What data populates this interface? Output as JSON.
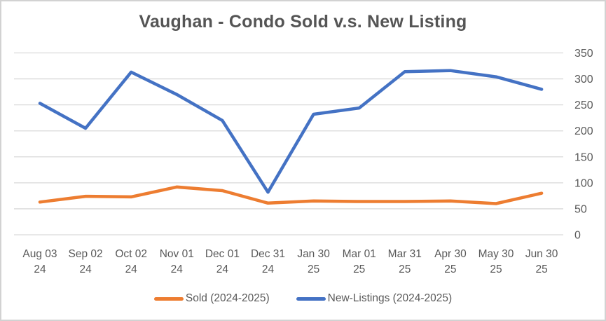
{
  "chart_data": {
    "type": "line",
    "title": "Vaughan - Condo Sold v.s. New Listing",
    "categories": [
      "Aug 03 24",
      "Sep 02 24",
      "Oct 02 24",
      "Nov 01 24",
      "Dec 01 24",
      "Dec 31 24",
      "Jan 30 25",
      "Mar 01 25",
      "Mar 31 25",
      "Apr 30 25",
      "May 30 25",
      "Jun 30 25"
    ],
    "series": [
      {
        "name": "Sold (2024-2025)",
        "color": "#ED7D31",
        "values": [
          63,
          74,
          73,
          92,
          85,
          61,
          65,
          64,
          64,
          65,
          60,
          80
        ]
      },
      {
        "name": "New-Listings (2024-2025)",
        "color": "#4472C4",
        "values": [
          253,
          205,
          313,
          270,
          220,
          82,
          232,
          244,
          314,
          316,
          304,
          280
        ]
      }
    ],
    "y_axis": {
      "min": 0,
      "max": 350,
      "step": 50,
      "side": "right",
      "tick_labels": [
        "350",
        "300",
        "250",
        "200",
        "150",
        "100",
        "50",
        "0"
      ]
    },
    "grid": true,
    "legend_position": "bottom",
    "colors": {
      "grid": "#D9D9D9",
      "text": "#595959",
      "border": "#D2D2D2",
      "background": "#FFFFFF"
    }
  }
}
